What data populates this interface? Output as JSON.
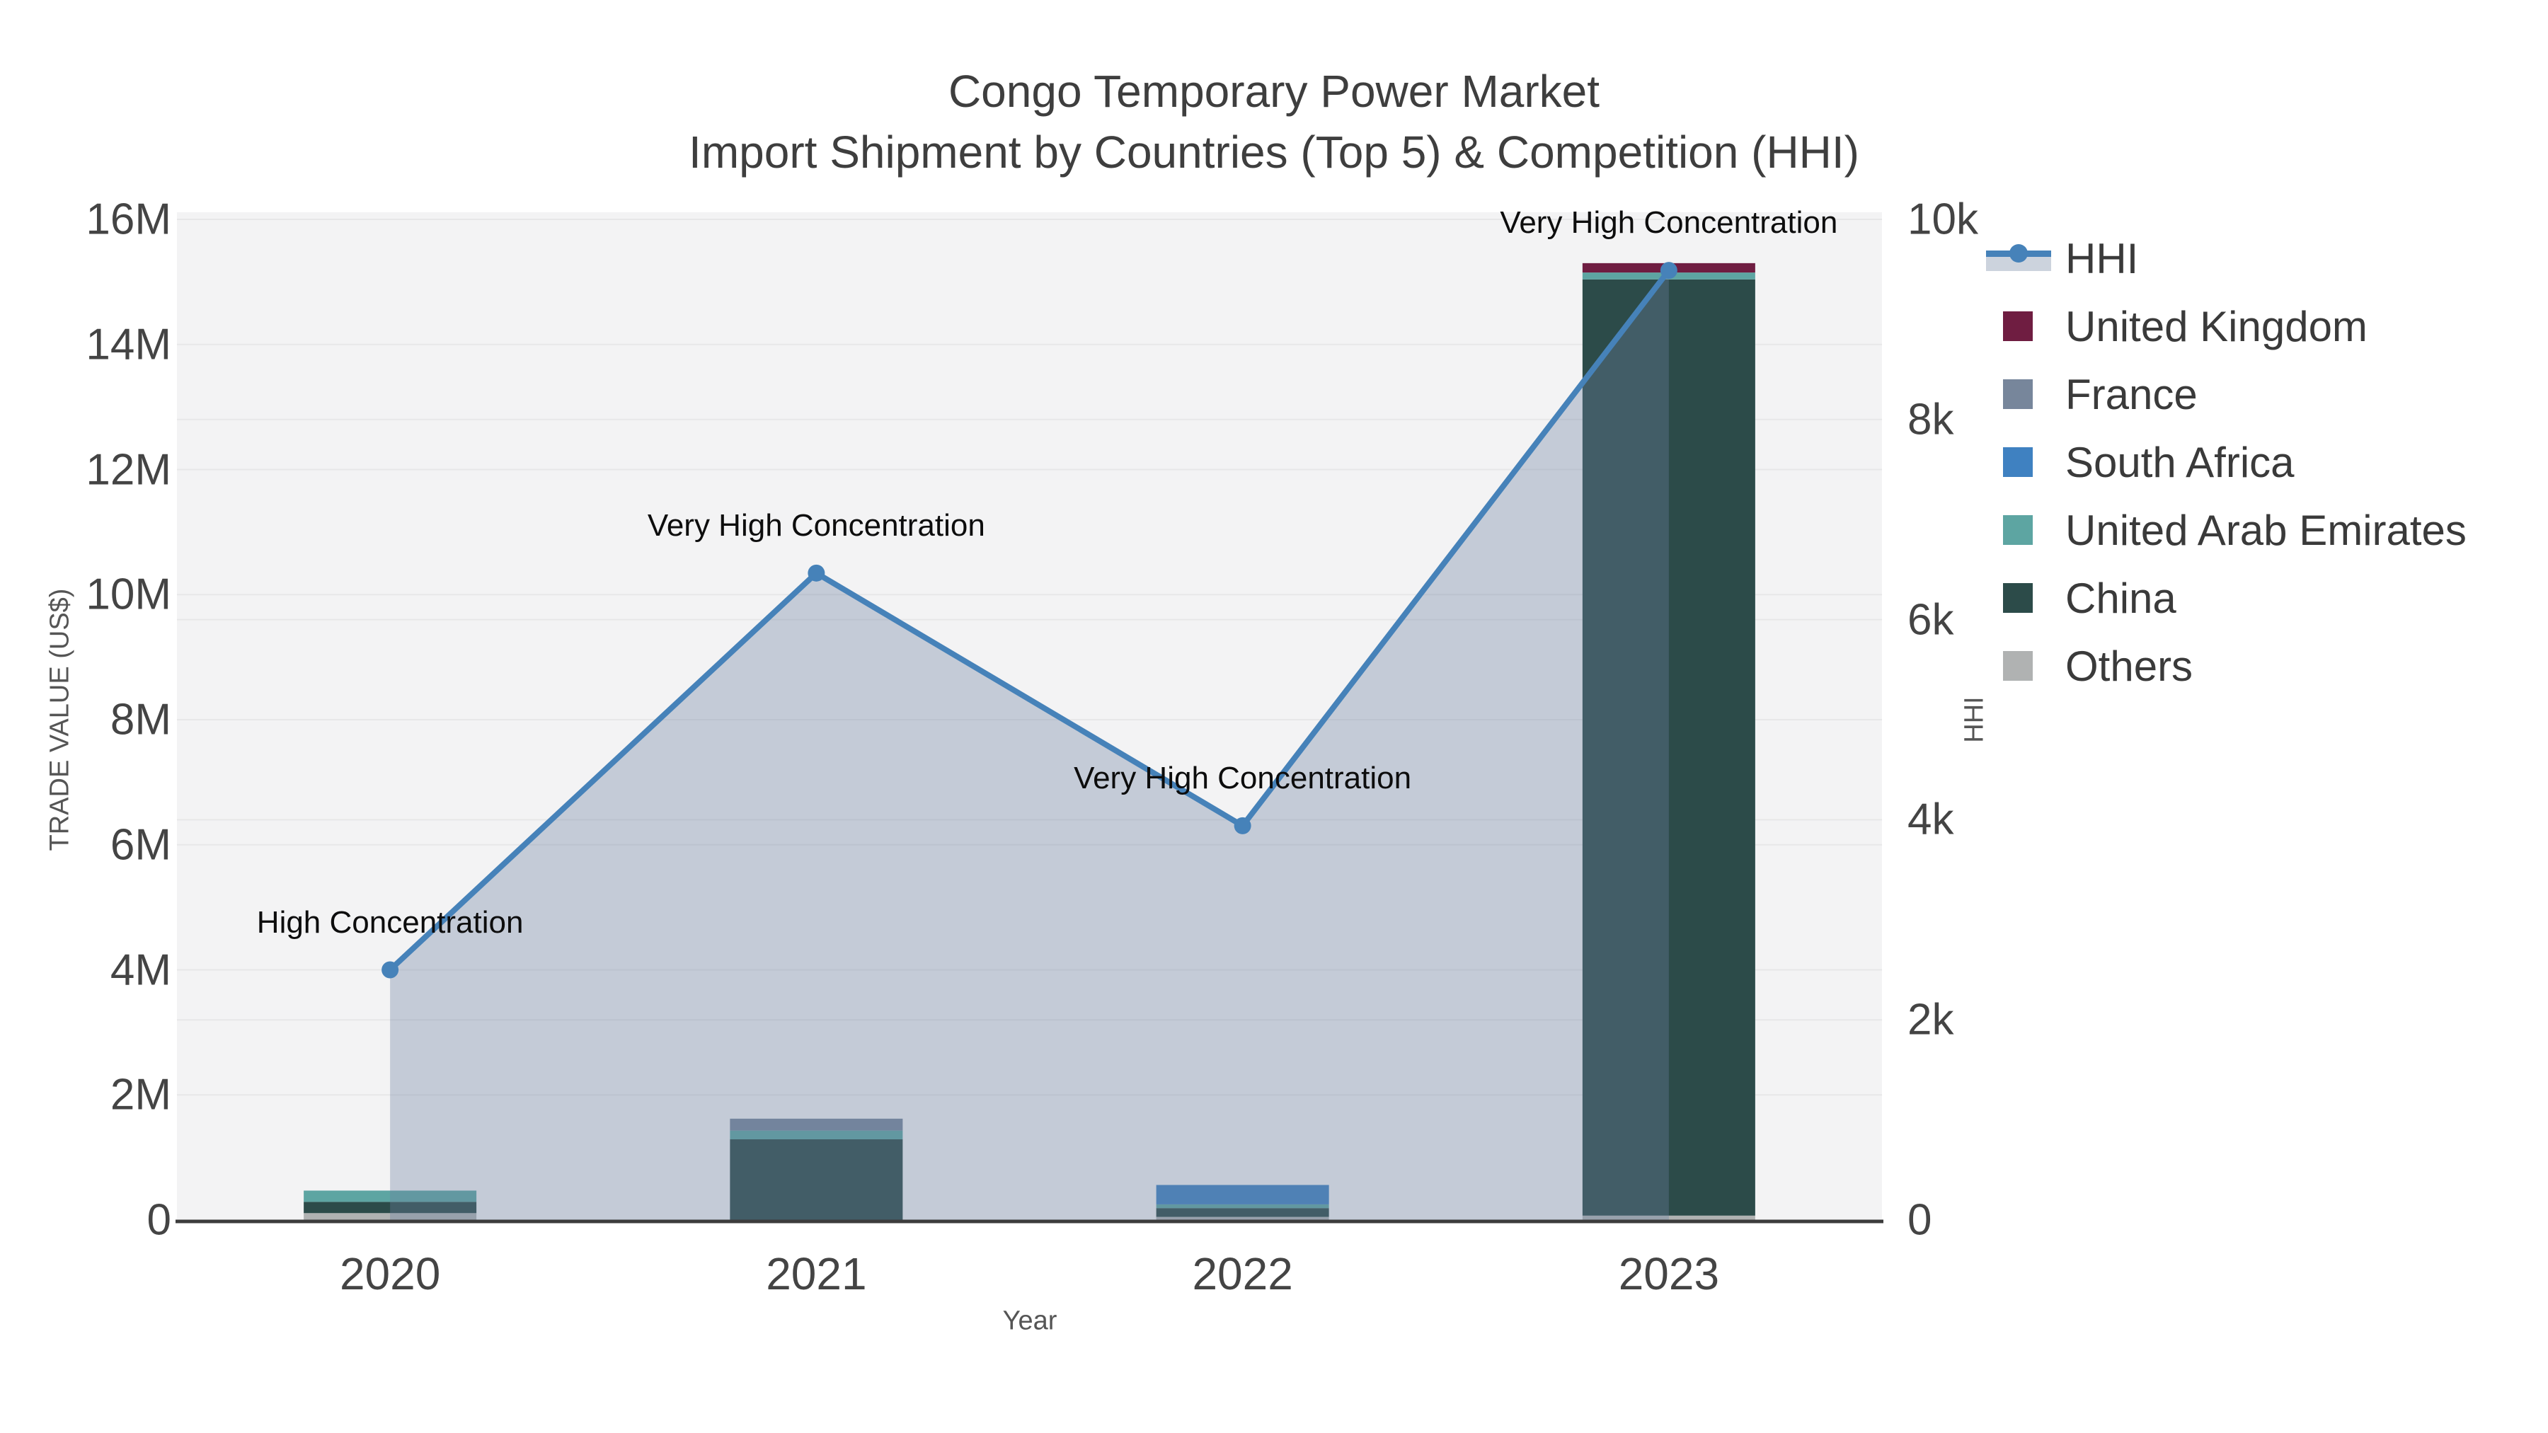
{
  "title": {
    "line1": "Congo Temporary Power Market",
    "line2": "Import Shipment by Countries (Top 5) & Competition (HHI)"
  },
  "chart_data": {
    "type": "bar+line",
    "title": "Congo Temporary Power Market — Import Shipment by Countries (Top 5) & Competition (HHI)",
    "categories": [
      "2020",
      "2021",
      "2022",
      "2023"
    ],
    "bar_unit": "US$ millions",
    "series": [
      {
        "name": "United Kingdom",
        "color": "#6f1d41",
        "values": [
          0,
          0,
          0,
          0.15
        ]
      },
      {
        "name": "France",
        "color": "#77869b",
        "values": [
          0,
          0.19,
          0,
          0
        ]
      },
      {
        "name": "South Africa",
        "color": "#3f81c1",
        "values": [
          0,
          0,
          0.31,
          0
        ]
      },
      {
        "name": "United Arab Emirates",
        "color": "#5da5a2",
        "values": [
          0.18,
          0.14,
          0.06,
          0.11
        ]
      },
      {
        "name": "China",
        "color": "#2c4b49",
        "values": [
          0.18,
          1.29,
          0.14,
          14.97
        ]
      },
      {
        "name": "Others",
        "color": "#b0b2b2",
        "values": [
          0.11,
          0,
          0.05,
          0.07
        ]
      }
    ],
    "stack_order_bottom_to_top": [
      "Others",
      "China",
      "United Arab Emirates",
      "South Africa",
      "France",
      "United Kingdom"
    ],
    "line": {
      "name": "HHI",
      "color": "#4682b9",
      "area_fill": "rgba(110,130,160,0.35)",
      "values": [
        2500,
        6465,
        3940,
        9490
      ]
    },
    "annotations": [
      "High Concentration",
      "Very High Concentration",
      "Very High Concentration",
      "Very High Concentration"
    ],
    "left_axis": {
      "title": "TRADE VALUE (US$)",
      "tick_labels": [
        "0",
        "2M",
        "4M",
        "6M",
        "8M",
        "10M",
        "12M",
        "14M",
        "16M"
      ],
      "range": [
        0,
        16000000
      ]
    },
    "right_axis": {
      "title": "HHI",
      "tick_labels": [
        "0",
        "2k",
        "4k",
        "6k",
        "8k",
        "10k"
      ],
      "range": [
        0,
        10000
      ]
    },
    "x_axis": {
      "title": "Year"
    },
    "grid": true,
    "legend_position": "right",
    "plot_bg": "#f3f3f4",
    "grid_color": "#e7e7e8",
    "axis_line_color": "#3c3c3c"
  }
}
